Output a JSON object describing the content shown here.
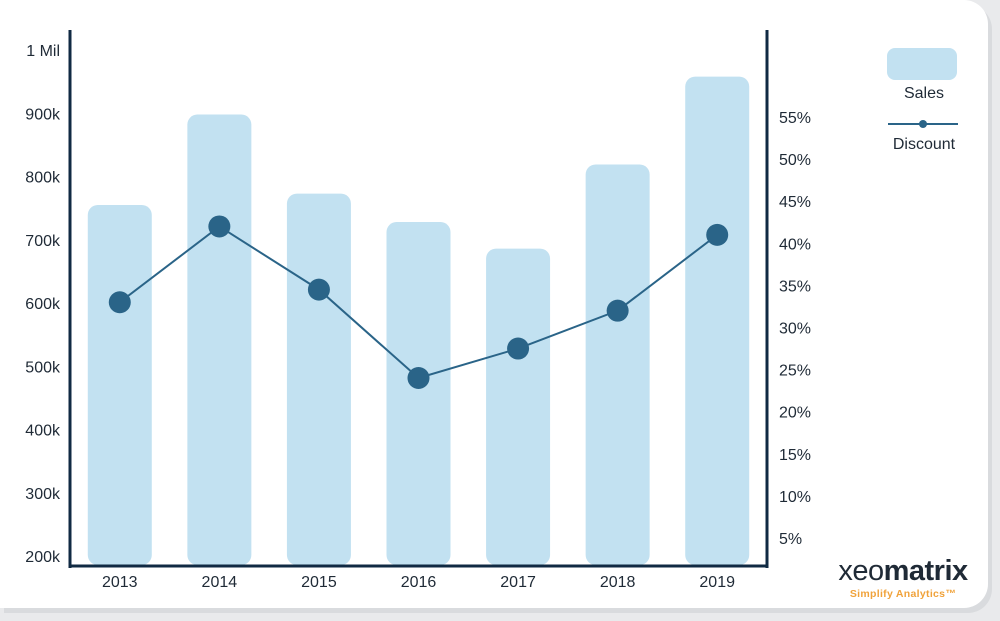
{
  "chart_data": {
    "type": "bar",
    "categories": [
      "2013",
      "2014",
      "2015",
      "2016",
      "2017",
      "2018",
      "2019"
    ],
    "series": [
      {
        "name": "Sales",
        "type": "bar",
        "axis": "left",
        "values": [
          755000,
          898000,
          773000,
          728000,
          686000,
          819000,
          958000
        ]
      },
      {
        "name": "Discount",
        "type": "line",
        "axis": "right",
        "values": [
          0.33,
          0.42,
          0.345,
          0.24,
          0.275,
          0.32,
          0.41
        ]
      }
    ],
    "y_left": {
      "ticks": [
        200000,
        300000,
        400000,
        500000,
        600000,
        700000,
        800000,
        900000,
        1000000
      ],
      "tick_labels": [
        "200k",
        "300k",
        "400k",
        "500k",
        "600k",
        "700k",
        "800k",
        "900k",
        "1 Mil"
      ],
      "range": [
        200000,
        1000000
      ]
    },
    "y_right": {
      "ticks": [
        0.05,
        0.1,
        0.15,
        0.2,
        0.25,
        0.3,
        0.35,
        0.4,
        0.45,
        0.5,
        0.55
      ],
      "tick_labels": [
        "5%",
        "10%",
        "15%",
        "20%",
        "25%",
        "30%",
        "35%",
        "40%",
        "45%",
        "50%",
        "55%"
      ]
    },
    "grid": false,
    "legend_position": "top-right",
    "colors": {
      "bar": "#c2e1f1",
      "line": "#2a6488",
      "axis": "#102a43",
      "text": "#1f2a36"
    }
  },
  "legend": {
    "sales_label": "Sales",
    "discount_label": "Discount"
  },
  "logo": {
    "word_light": "xeo",
    "word_bold": "matrix",
    "tagline": "Simplify Analytics™"
  }
}
